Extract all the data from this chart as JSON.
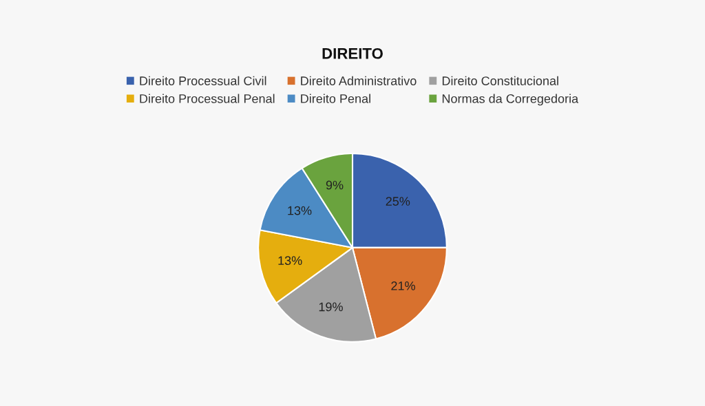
{
  "chart_data": {
    "type": "pie",
    "title": "DIREITO",
    "categories": [
      "Direito Processual Civil",
      "Direito Administrativo",
      "Direito Constitucional",
      "Direito Processual Penal",
      "Direito Penal",
      "Normas da Corregedoria"
    ],
    "values": [
      25,
      21,
      19,
      13,
      13,
      9
    ],
    "value_labels": [
      "25%",
      "21%",
      "19%",
      "13%",
      "13%",
      "9%"
    ],
    "colors": [
      "#3a62ad",
      "#d8712e",
      "#a0a0a0",
      "#e5ae0e",
      "#4c8bc4",
      "#6aa33e"
    ],
    "legend": "top"
  }
}
